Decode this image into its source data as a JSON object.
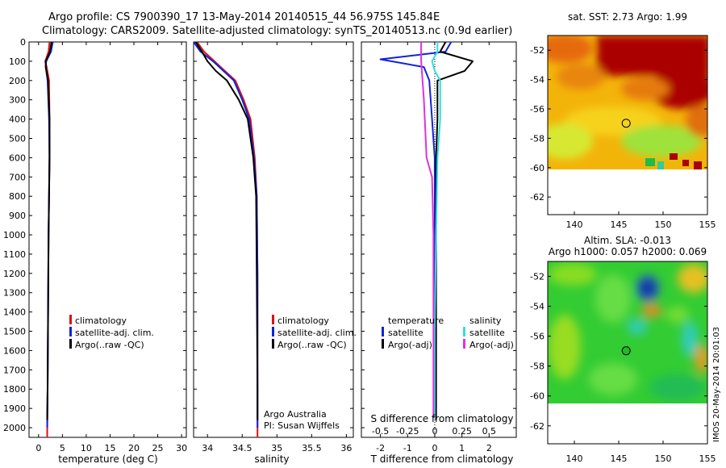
{
  "figure": {
    "title_line1": "Argo profile: CS 7900390_17 13-May-2014 20140515_44 56.975S 145.84E",
    "title_line2": "Climatology: CARS2009. Satellite-adjusted climatology: synTS_20140513.nc (0.9d earlier)",
    "attribution_line1": "Argo Australia",
    "attribution_line2": "PI: Susan Wijffels",
    "stamp": "IMOS 20-May-2014 20:01:03"
  },
  "colors": {
    "climatology": "#dd1111",
    "satellite": "#1122dd",
    "argo": "#000000",
    "salinity_satellite": "#33dddd",
    "salinity_argo": "#dd33dd"
  },
  "chart_data": [
    {
      "type": "line",
      "id": "temperature",
      "xlabel": "temperature (deg C)",
      "ylabel": "",
      "xlim": [
        -2,
        31
      ],
      "ylim": [
        2050,
        0
      ],
      "xticks": [
        "0",
        "5",
        "10",
        "15",
        "20",
        "25",
        "30"
      ],
      "xtick_values": [
        0,
        5,
        10,
        15,
        20,
        25,
        30
      ],
      "yticks": [
        "0",
        "100",
        "200",
        "300",
        "400",
        "500",
        "600",
        "700",
        "800",
        "900",
        "1000",
        "1100",
        "1200",
        "1300",
        "1400",
        "1500",
        "1600",
        "1700",
        "1800",
        "1900",
        "2000"
      ],
      "ytick_values": [
        0,
        100,
        200,
        300,
        400,
        500,
        600,
        700,
        800,
        900,
        1000,
        1100,
        1200,
        1300,
        1400,
        1500,
        1600,
        1700,
        1800,
        1900,
        2000
      ],
      "legend": [
        "climatology",
        "satellite-adj. clim.",
        "Argo(..raw -QC)"
      ],
      "series": [
        {
          "name": "climatology",
          "color_key": "climatology",
          "x": [
            2.3,
            2.1,
            1.4,
            1.7,
            2.2,
            2.3,
            2.3,
            2.2,
            2.1,
            2.0,
            1.9,
            1.8
          ],
          "y": [
            0,
            50,
            100,
            130,
            200,
            400,
            600,
            800,
            1000,
            1400,
            1800,
            2050
          ]
        },
        {
          "name": "satellite-adj. clim.",
          "color_key": "satellite",
          "x": [
            3.0,
            2.6,
            1.6,
            1.5,
            1.9,
            2.2,
            2.3,
            2.2,
            2.1,
            2.0,
            1.9,
            1.8
          ],
          "y": [
            0,
            50,
            100,
            130,
            200,
            400,
            600,
            800,
            1000,
            1400,
            1800,
            2000
          ]
        },
        {
          "name": "Argo(..raw -QC)",
          "color_key": "argo",
          "x": [
            2.7,
            2.4,
            1.5,
            1.5,
            2.0,
            2.3,
            2.3,
            2.2,
            2.1,
            2.0,
            1.9,
            1.8
          ],
          "y": [
            0,
            50,
            100,
            130,
            200,
            400,
            600,
            800,
            1000,
            1400,
            1800,
            1960
          ]
        }
      ]
    },
    {
      "type": "line",
      "id": "salinity",
      "xlabel": "salinity",
      "ylabel": "",
      "xlim": [
        33.8,
        36.1
      ],
      "ylim": [
        2050,
        0
      ],
      "xticks": [
        "34",
        "34.5",
        "35",
        "35.5",
        "36"
      ],
      "xtick_values": [
        34,
        34.5,
        35,
        35.5,
        36
      ],
      "legend": [
        "climatology",
        "satellite-adj. clim.",
        "Argo(..raw -QC)"
      ],
      "series": [
        {
          "name": "climatology",
          "color_key": "climatology",
          "x": [
            33.85,
            33.95,
            34.1,
            34.25,
            34.4,
            34.52,
            34.62,
            34.68,
            34.71,
            34.72,
            34.72,
            34.72
          ],
          "y": [
            0,
            50,
            100,
            150,
            200,
            300,
            400,
            600,
            800,
            1200,
            1800,
            2050
          ]
        },
        {
          "name": "satellite-adj. clim.",
          "color_key": "satellite",
          "x": [
            33.8,
            33.9,
            34.08,
            34.23,
            34.38,
            34.5,
            34.6,
            34.67,
            34.71,
            34.72,
            34.72,
            34.72
          ],
          "y": [
            0,
            50,
            100,
            150,
            200,
            300,
            400,
            600,
            800,
            1200,
            1800,
            2000
          ]
        },
        {
          "name": "Argo(..raw -QC)",
          "color_key": "argo",
          "x": [
            33.83,
            33.92,
            34.0,
            34.12,
            34.28,
            34.45,
            34.58,
            34.66,
            34.7,
            34.71,
            34.72,
            34.72
          ],
          "y": [
            0,
            50,
            100,
            150,
            200,
            300,
            400,
            600,
            800,
            1200,
            1800,
            1960
          ]
        }
      ]
    },
    {
      "type": "line",
      "id": "differences",
      "xlabel": "T difference from climatology",
      "xlabel_top": "S difference from climatology",
      "xlim": [
        -2.7,
        3.0
      ],
      "ylim": [
        2050,
        0
      ],
      "xticks": [
        "-2",
        "-1",
        "0",
        "1",
        "2"
      ],
      "xtick_values": [
        -2,
        -1,
        0,
        1,
        2
      ],
      "xticks_top": [
        "-0.5",
        "-0.25",
        "0",
        "0.25",
        "0.5"
      ],
      "xtick_values_top": [
        -2,
        -1,
        0,
        1,
        2
      ],
      "legend_temperature": [
        "temperature",
        "satellite",
        "Argo(-adj)"
      ],
      "legend_salinity": [
        "salinity",
        "satellite",
        "Argo(-adj)"
      ],
      "series": [
        {
          "name": "temperature satellite",
          "color_key": "satellite",
          "x": [
            0.6,
            0.4,
            -2.0,
            -0.4,
            -0.2,
            -0.1,
            0,
            0,
            0,
            0
          ],
          "y": [
            0,
            50,
            90,
            130,
            200,
            400,
            600,
            1000,
            1500,
            1950
          ]
        },
        {
          "name": "temperature Argo(-adj)",
          "color_key": "argo",
          "x": [
            0.4,
            0.2,
            1.4,
            1.1,
            0.1,
            0.1,
            0.05,
            0.05,
            0.05,
            0.05
          ],
          "y": [
            0,
            50,
            100,
            150,
            200,
            400,
            600,
            1000,
            1500,
            1960
          ]
        },
        {
          "name": "salinity satellite",
          "color_key": "salinity_satellite",
          "x": [
            0.1,
            0.1,
            -0.1,
            0.0,
            0.2,
            0.2,
            0.1,
            0.05,
            0.0,
            0.0
          ],
          "y": [
            0,
            50,
            100,
            150,
            200,
            400,
            600,
            1000,
            1500,
            1950
          ]
        },
        {
          "name": "salinity Argo(-adj)",
          "color_key": "salinity_argo",
          "x": [
            -0.5,
            -0.5,
            -0.4,
            -0.3,
            -0.1,
            -0.05,
            -0.05,
            -0.05
          ],
          "y": [
            0,
            100,
            300,
            600,
            700,
            1000,
            1500,
            1950
          ]
        }
      ]
    },
    {
      "type": "heatmap",
      "id": "sst_map",
      "title": "sat. SST: 2.73 Argo: 1.99",
      "xlim": [
        137,
        155
      ],
      "ylim": [
        -63.2,
        -51
      ],
      "xticks": [
        "140",
        "145",
        "150",
        "155"
      ],
      "xtick_values": [
        140,
        145,
        150,
        155
      ],
      "yticks": [
        "-52",
        "-54",
        "-56",
        "-58",
        "-60",
        "-62"
      ],
      "ytick_values": [
        -52,
        -54,
        -56,
        -58,
        -60,
        -62
      ],
      "data_bottom_lat": -60,
      "marker": {
        "lon": 145.84,
        "lat": -56.975
      }
    },
    {
      "type": "heatmap",
      "id": "sla_map",
      "title_line1": "Altim. SLA: -0.013",
      "title_line2": "Argo h1000: 0.057 h2000: 0.069",
      "xlim": [
        137,
        155
      ],
      "ylim": [
        -63.2,
        -51
      ],
      "xticks": [
        "140",
        "145",
        "150",
        "155"
      ],
      "xtick_values": [
        140,
        145,
        150,
        155
      ],
      "yticks": [
        "-52",
        "-54",
        "-56",
        "-58",
        "-60",
        "-62"
      ],
      "ytick_values": [
        -52,
        -54,
        -56,
        -58,
        -60,
        -62
      ],
      "data_bottom_lat": -60,
      "marker": {
        "lon": 145.84,
        "lat": -56.975
      }
    }
  ]
}
